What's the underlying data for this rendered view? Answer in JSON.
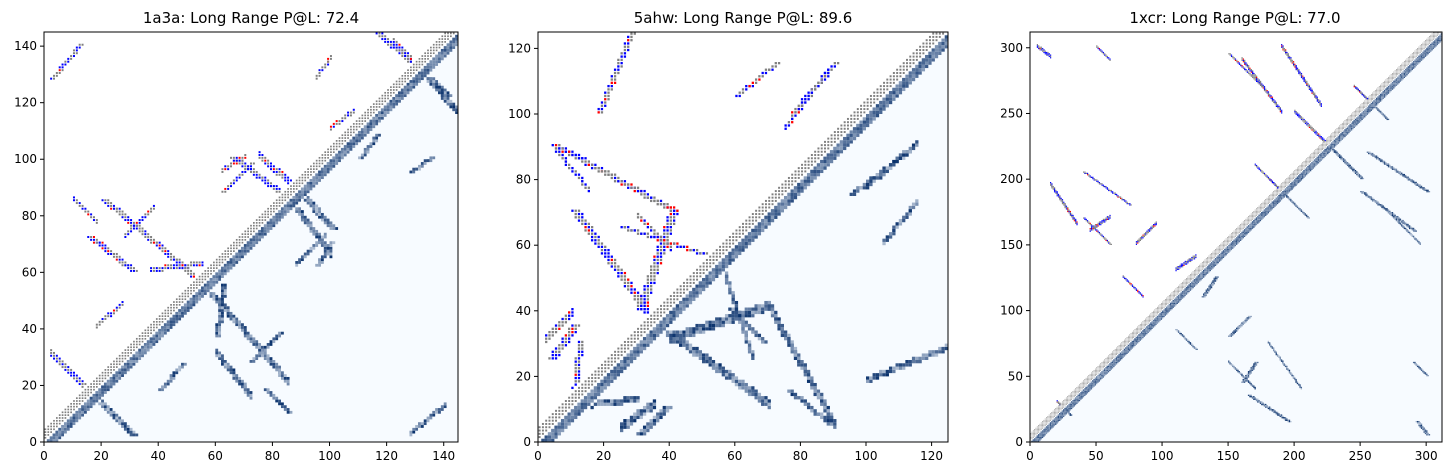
{
  "colors": {
    "background": "#ffffff",
    "axes": "#000000",
    "upper_contact": "#808080",
    "correct_prediction": "#0000ff",
    "wrong_prediction": "#ff0000",
    "cmap_low": "#f7fbff",
    "cmap_high": "#08306b"
  },
  "chart_data": [
    {
      "type": "heatmap",
      "title": "1a3a: Long Range P@L: 72.4",
      "length": 145,
      "xlim": [
        0,
        145
      ],
      "ylim": [
        0,
        145
      ],
      "xticks": [
        0,
        20,
        40,
        60,
        80,
        100,
        120,
        140
      ],
      "yticks": [
        0,
        20,
        40,
        60,
        80,
        100,
        120,
        140
      ],
      "grid": false,
      "diagonal_band": 4,
      "contacts": [
        {
          "type": "antiparallel",
          "start": [
            2,
            30
          ],
          "end": [
            15,
            17
          ],
          "width": 3
        },
        {
          "type": "antiparallel",
          "start": [
            10,
            85
          ],
          "end": [
            18,
            77
          ],
          "width": 2
        },
        {
          "type": "parallel",
          "start": [
            18,
            40
          ],
          "end": [
            27,
            48
          ],
          "width": 2
        },
        {
          "type": "parallel",
          "start": [
            28,
            72
          ],
          "end": [
            38,
            82
          ],
          "width": 2
        },
        {
          "type": "parallel",
          "start": [
            37,
            60
          ],
          "end": [
            55,
            62
          ],
          "width": 2
        },
        {
          "type": "antiparallel",
          "start": [
            55,
            55
          ],
          "end": [
            85,
            20
          ],
          "width": 3
        },
        {
          "type": "antiparallel",
          "start": [
            60,
            30
          ],
          "end": [
            72,
            15
          ],
          "width": 3
        },
        {
          "type": "parallel",
          "start": [
            62,
            95
          ],
          "end": [
            70,
            100
          ],
          "width": 2
        },
        {
          "type": "antiparallel",
          "start": [
            75,
            100
          ],
          "end": [
            88,
            88
          ],
          "width": 3
        },
        {
          "type": "antiparallel",
          "start": [
            85,
            85
          ],
          "end": [
            100,
            65
          ],
          "width": 3
        },
        {
          "type": "parallel",
          "start": [
            88,
            62
          ],
          "end": [
            98,
            72
          ],
          "width": 2
        },
        {
          "type": "parallel",
          "start": [
            100,
            110
          ],
          "end": [
            108,
            116
          ],
          "width": 2
        },
        {
          "type": "parallel",
          "start": [
            95,
            128
          ],
          "end": [
            100,
            135
          ],
          "width": 2
        },
        {
          "type": "antiparallel",
          "start": [
            122,
            140
          ],
          "end": [
            145,
            115
          ],
          "width": 3
        },
        {
          "type": "block",
          "start": [
            128,
            2
          ],
          "end": [
            140,
            12
          ],
          "width": 2
        }
      ]
    },
    {
      "type": "heatmap",
      "title": "5ahw: Long Range P@L: 89.6",
      "length": 125,
      "xlim": [
        0,
        125
      ],
      "ylim": [
        0,
        125
      ],
      "xticks": [
        0,
        20,
        40,
        60,
        80,
        100,
        120
      ],
      "yticks": [
        0,
        20,
        40,
        60,
        80,
        100,
        120
      ],
      "grid": false,
      "diagonal_band": 4,
      "contacts": [
        {
          "type": "parallel",
          "start": [
            2,
            30
          ],
          "end": [
            10,
            38
          ],
          "width": 3
        },
        {
          "type": "antiparallel",
          "start": [
            5,
            88
          ],
          "end": [
            15,
            76
          ],
          "width": 2
        },
        {
          "type": "parallel",
          "start": [
            12,
            10
          ],
          "end": [
            30,
            12
          ],
          "width": 2
        },
        {
          "type": "antiparallel",
          "start": [
            30,
            68
          ],
          "end": [
            40,
            58
          ],
          "width": 2
        },
        {
          "type": "antiparallel",
          "start": [
            25,
            3
          ],
          "end": [
            35,
            10
          ],
          "width": 3
        },
        {
          "type": "antiparallel",
          "start": [
            35,
            35
          ],
          "end": [
            70,
            10
          ],
          "width": 3
        },
        {
          "type": "parallel",
          "start": [
            40,
            30
          ],
          "end": [
            70,
            40
          ],
          "width": 3
        },
        {
          "type": "antiparallel",
          "start": [
            55,
            55
          ],
          "end": [
            65,
            25
          ],
          "width": 2
        },
        {
          "type": "antiparallel",
          "start": [
            70,
            40
          ],
          "end": [
            90,
            4
          ],
          "width": 3
        },
        {
          "type": "antiparallel",
          "start": [
            75,
            95
          ],
          "end": [
            88,
            112
          ],
          "width": 2
        },
        {
          "type": "antiparallel",
          "start": [
            100,
            77
          ],
          "end": [
            115,
            90
          ],
          "width": 2
        },
        {
          "type": "block",
          "start": [
            100,
            18
          ],
          "end": [
            125,
            28
          ],
          "width": 2
        },
        {
          "type": "parallel",
          "start": [
            105,
            60
          ],
          "end": [
            115,
            72
          ],
          "width": 2
        }
      ]
    },
    {
      "type": "heatmap",
      "title": "1xcr: Long Range P@L: 77.0",
      "length": 312,
      "xlim": [
        0,
        312
      ],
      "ylim": [
        0,
        312
      ],
      "xticks": [
        0,
        50,
        100,
        150,
        200,
        250,
        300
      ],
      "yticks": [
        0,
        50,
        100,
        150,
        200,
        250,
        300
      ],
      "grid": false,
      "diagonal_band": 6,
      "contacts": [
        {
          "type": "antiparallel",
          "start": [
            5,
            300
          ],
          "end": [
            15,
            292
          ],
          "width": 3
        },
        {
          "type": "antiparallel",
          "start": [
            15,
            195
          ],
          "end": [
            35,
            165
          ],
          "width": 3
        },
        {
          "type": "parallel",
          "start": [
            45,
            160
          ],
          "end": [
            60,
            170
          ],
          "width": 3
        },
        {
          "type": "parallel",
          "start": [
            80,
            150
          ],
          "end": [
            95,
            165
          ],
          "width": 3
        },
        {
          "type": "parallel",
          "start": [
            110,
            130
          ],
          "end": [
            125,
            140
          ],
          "width": 3
        },
        {
          "type": "antiparallel",
          "start": [
            70,
            125
          ],
          "end": [
            85,
            110
          ],
          "width": 2
        },
        {
          "type": "antiparallel",
          "start": [
            50,
            300
          ],
          "end": [
            60,
            290
          ],
          "width": 2
        },
        {
          "type": "antiparallel",
          "start": [
            160,
            290
          ],
          "end": [
            190,
            250
          ],
          "width": 3
        },
        {
          "type": "antiparallel",
          "start": [
            190,
            300
          ],
          "end": [
            220,
            255
          ],
          "width": 3
        },
        {
          "type": "antiparallel",
          "start": [
            200,
            250
          ],
          "end": [
            225,
            225
          ],
          "width": 3
        },
        {
          "type": "parallel",
          "start": [
            20,
            30
          ],
          "end": [
            30,
            20
          ],
          "width": 2
        },
        {
          "type": "antiparallel",
          "start": [
            170,
            210
          ],
          "end": [
            200,
            180
          ],
          "width": 2
        },
        {
          "type": "antiparallel",
          "start": [
            180,
            75
          ],
          "end": [
            205,
            40
          ],
          "width": 2
        },
        {
          "type": "antiparallel",
          "start": [
            150,
            60
          ],
          "end": [
            170,
            40
          ],
          "width": 2
        },
        {
          "type": "antiparallel",
          "start": [
            245,
            270
          ],
          "end": [
            270,
            245
          ],
          "width": 2
        },
        {
          "type": "antiparallel",
          "start": [
            270,
            175
          ],
          "end": [
            295,
            150
          ],
          "width": 2
        }
      ]
    }
  ]
}
